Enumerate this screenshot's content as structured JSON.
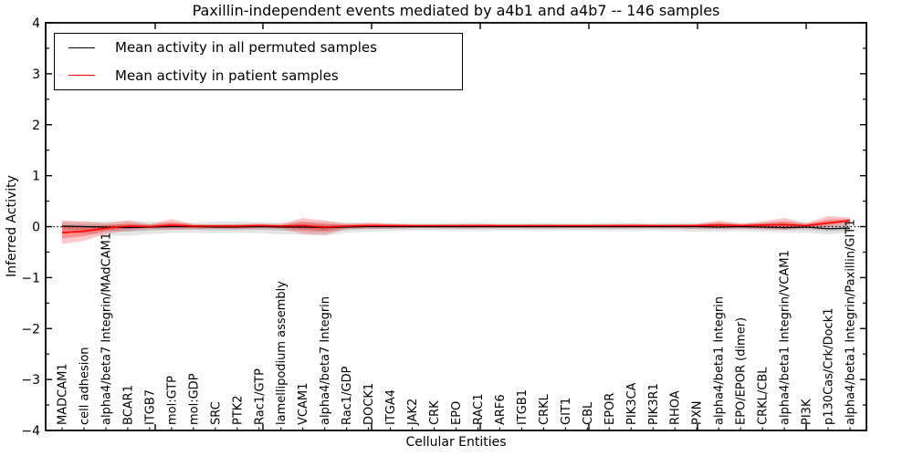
{
  "figure": {
    "background": "#ffffff"
  },
  "legend": {
    "position": "upper-left",
    "items": [
      {
        "label": "Mean activity in all permuted samples",
        "color": "#000000"
      },
      {
        "label": "Mean activity in patient samples",
        "color": "#ff0000"
      }
    ]
  },
  "chart_data": {
    "type": "line",
    "title": "Paxillin-independent events mediated by a4b1 and a4b7 -- 146 samples",
    "xlabel": "Cellular Entities",
    "ylabel": "Inferred Activity",
    "ylim": [
      -4,
      4
    ],
    "y_tick_values": [
      4,
      3,
      2,
      1,
      0,
      -1,
      -2,
      -3,
      -4
    ],
    "y_tick_labels": [
      "4",
      "3",
      "2",
      "1",
      "0",
      "−1",
      "−2",
      "−3",
      "−4"
    ],
    "y_minor_step": 0.5,
    "grid": false,
    "legend_position": "upper-left",
    "zero_line": {
      "y": 0,
      "style": "dotted",
      "color": "#000000"
    },
    "categories": [
      "MADCAM1",
      "cell adhesion",
      "alpha4/beta7 Integrin/MAdCAM1",
      "BCAR1",
      "ITGB7",
      "mol:GTP",
      "mol:GDP",
      "SRC",
      "PTK2",
      "Rac1/GTP",
      "lamellipodium assembly",
      "VCAM1",
      "alpha4/beta7 Integrin",
      "Rac1/GDP",
      "DOCK1",
      "ITGA4",
      "JAK2",
      "CRK",
      "EPO",
      "RAC1",
      "ARF6",
      "ITGB1",
      "CRKL",
      "GIT1",
      "CBL",
      "EPOR",
      "PIK3CA",
      "PIK3R1",
      "RHOA",
      "PXN",
      "alpha4/beta1 Integrin",
      "EPO/EPOR (dimer)",
      "CRKL/CBL",
      "alpha4/beta1 Integrin/VCAM1",
      "PI3K",
      "p130Cas/Crk/Dock1",
      "alpha4/beta1 Integrin/Paxillin/GIT1"
    ],
    "series": [
      {
        "name": "Mean activity in all permuted samples",
        "color": "#000000",
        "values": [
          0.01,
          0.0,
          -0.01,
          -0.02,
          -0.01,
          0.0,
          0.0,
          -0.01,
          -0.01,
          0.0,
          -0.01,
          -0.01,
          -0.02,
          -0.01,
          0.0,
          0.0,
          0.0,
          0.0,
          0.0,
          0.0,
          0.0,
          0.0,
          0.0,
          0.0,
          0.0,
          0.0,
          0.0,
          0.0,
          0.0,
          0.0,
          -0.01,
          0.0,
          -0.01,
          -0.02,
          -0.01,
          -0.04,
          -0.03
        ]
      },
      {
        "name": "Mean activity in patient samples",
        "color": "#ff0000",
        "values": [
          -0.12,
          -0.09,
          -0.03,
          0.01,
          0.0,
          0.03,
          0.01,
          0.01,
          0.01,
          0.02,
          0.01,
          0.02,
          -0.01,
          0.01,
          0.02,
          0.02,
          0.02,
          0.02,
          0.02,
          0.02,
          0.02,
          0.02,
          0.02,
          0.02,
          0.02,
          0.02,
          0.02,
          0.02,
          0.02,
          0.02,
          0.03,
          0.02,
          0.03,
          0.04,
          0.02,
          0.07,
          0.12
        ]
      }
    ],
    "bands": [
      {
        "name": "permuted samples spread",
        "color": "#000000",
        "mean_series": 0,
        "fill_opacity_outer": 0.1,
        "fill_opacity_inner": 0.13,
        "inner_fraction": 0.5,
        "upper": [
          0.1,
          0.1,
          0.1,
          0.11,
          0.1,
          0.08,
          0.08,
          0.1,
          0.1,
          0.09,
          0.08,
          0.1,
          0.1,
          0.08,
          0.07,
          0.07,
          0.07,
          0.07,
          0.08,
          0.08,
          0.07,
          0.07,
          0.08,
          0.07,
          0.07,
          0.08,
          0.08,
          0.07,
          0.08,
          0.08,
          0.08,
          0.07,
          0.08,
          0.09,
          0.08,
          0.09,
          0.1
        ],
        "lower": [
          -0.1,
          -0.14,
          -0.17,
          -0.18,
          -0.15,
          -0.12,
          -0.12,
          -0.13,
          -0.12,
          -0.13,
          -0.15,
          -0.16,
          -0.18,
          -0.12,
          -0.1,
          -0.09,
          -0.08,
          -0.08,
          -0.09,
          -0.09,
          -0.08,
          -0.08,
          -0.09,
          -0.08,
          -0.08,
          -0.09,
          -0.09,
          -0.08,
          -0.09,
          -0.1,
          -0.1,
          -0.09,
          -0.1,
          -0.11,
          -0.12,
          -0.15,
          -0.12
        ]
      },
      {
        "name": "patient samples spread",
        "color": "#ff0000",
        "mean_series": 1,
        "fill_opacity_outer": 0.22,
        "fill_opacity_inner": 0.28,
        "inner_fraction": 0.5,
        "upper": [
          0.12,
          0.1,
          0.07,
          0.12,
          0.05,
          0.15,
          0.05,
          0.04,
          0.05,
          0.06,
          0.05,
          0.17,
          0.12,
          0.06,
          0.08,
          0.06,
          0.04,
          0.04,
          0.04,
          0.05,
          0.04,
          0.04,
          0.04,
          0.04,
          0.04,
          0.04,
          0.05,
          0.04,
          0.04,
          0.05,
          0.12,
          0.06,
          0.1,
          0.17,
          0.07,
          0.21,
          0.18
        ],
        "lower": [
          -0.34,
          -0.28,
          -0.14,
          -0.08,
          -0.05,
          -0.06,
          -0.05,
          -0.04,
          -0.05,
          -0.04,
          -0.04,
          -0.14,
          -0.16,
          -0.05,
          -0.04,
          -0.04,
          -0.03,
          -0.03,
          -0.03,
          -0.03,
          -0.03,
          -0.03,
          -0.03,
          -0.03,
          -0.03,
          -0.03,
          -0.03,
          -0.03,
          -0.03,
          -0.04,
          -0.04,
          -0.04,
          -0.05,
          -0.06,
          -0.03,
          0.0,
          0.04
        ]
      }
    ]
  }
}
